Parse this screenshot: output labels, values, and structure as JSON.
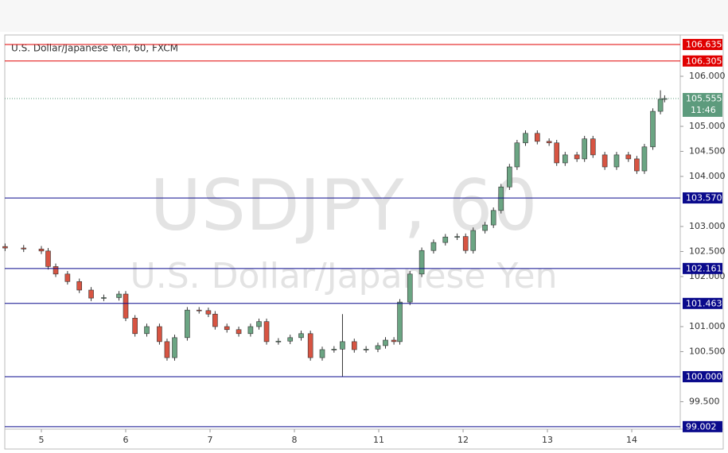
{
  "chart_data": {
    "type": "candlestick",
    "title": "U.S. Dollar/Japanese Yen, 60, FXCM",
    "watermark": "USDJPY, 60",
    "watermark_subtitle": "U.S. Dollar/Japanese Yen",
    "up_color": "#6ba583",
    "down_color": "#d75442",
    "x": [
      -0.43,
      -0.21,
      0.0,
      0.08,
      0.17,
      0.31,
      0.45,
      0.59,
      0.74,
      0.92,
      1.0,
      1.11,
      1.25,
      1.4,
      1.49,
      1.58,
      1.73,
      1.87,
      1.98,
      2.06,
      2.2,
      2.34,
      2.48,
      2.58,
      2.67,
      2.81,
      2.95,
      3.08,
      3.19,
      3.33,
      3.47,
      3.57,
      3.71,
      3.85,
      3.99,
      4.08,
      4.18,
      4.25,
      4.37,
      4.51,
      4.65,
      4.79,
      4.93,
      5.03,
      5.12,
      5.26,
      5.36,
      5.45,
      5.55,
      5.64,
      5.74,
      5.88,
      6.02,
      6.11,
      6.21,
      6.35,
      6.44,
      6.54,
      6.68,
      6.82,
      6.96,
      7.06,
      7.15,
      7.25,
      7.34,
      7.39
    ],
    "open": [
      102.6,
      102.57,
      102.55,
      102.51,
      102.2,
      102.05,
      101.9,
      101.73,
      101.57,
      101.58,
      101.65,
      101.17,
      100.86,
      101.0,
      100.7,
      100.38,
      100.78,
      101.33,
      101.32,
      101.25,
      101.0,
      100.94,
      100.86,
      101.0,
      101.1,
      100.7,
      100.71,
      100.78,
      100.86,
      100.38,
      100.54,
      100.55,
      100.7,
      100.54,
      100.55,
      100.62,
      100.73,
      100.7,
      101.49,
      102.05,
      102.52,
      102.68,
      102.79,
      102.8,
      102.52,
      102.92,
      103.03,
      103.32,
      103.79,
      104.19,
      104.67,
      104.86,
      104.7,
      104.67,
      104.27,
      104.43,
      104.35,
      104.75,
      104.43,
      104.19,
      104.43,
      104.35,
      104.11,
      104.59,
      105.3,
      105.54
    ],
    "high": [
      102.66,
      102.63,
      102.61,
      102.57,
      102.26,
      102.11,
      101.96,
      101.79,
      101.64,
      101.71,
      101.71,
      101.23,
      101.06,
      101.06,
      100.76,
      100.84,
      101.39,
      101.39,
      101.38,
      101.31,
      101.06,
      101.0,
      101.06,
      101.16,
      101.16,
      100.77,
      100.84,
      100.92,
      100.92,
      100.6,
      100.61,
      101.25,
      100.76,
      100.61,
      100.68,
      100.79,
      100.79,
      101.55,
      102.11,
      102.58,
      102.74,
      102.85,
      102.86,
      102.86,
      102.98,
      103.09,
      103.38,
      103.85,
      104.25,
      104.73,
      104.92,
      104.92,
      104.76,
      104.73,
      104.49,
      104.49,
      104.81,
      104.81,
      104.49,
      104.49,
      104.49,
      104.41,
      104.65,
      105.36,
      105.72,
      105.62
    ],
    "low": [
      102.51,
      102.49,
      102.45,
      102.14,
      101.99,
      101.84,
      101.67,
      101.51,
      101.51,
      101.52,
      101.11,
      100.8,
      100.8,
      100.64,
      100.32,
      100.32,
      100.72,
      101.26,
      101.19,
      100.94,
      100.88,
      100.8,
      100.8,
      100.94,
      100.64,
      100.64,
      100.65,
      100.72,
      100.32,
      100.32,
      100.48,
      100.0,
      100.48,
      100.48,
      100.49,
      100.56,
      100.64,
      100.64,
      101.43,
      101.99,
      102.46,
      102.62,
      102.73,
      102.46,
      102.46,
      102.86,
      102.97,
      103.26,
      103.73,
      104.13,
      104.61,
      104.64,
      104.61,
      104.21,
      104.21,
      104.29,
      104.29,
      104.37,
      104.13,
      104.13,
      104.29,
      104.05,
      104.05,
      104.53,
      105.24,
      105.48
    ],
    "close": [
      102.57,
      102.55,
      102.51,
      102.2,
      102.05,
      101.9,
      101.73,
      101.57,
      101.58,
      101.65,
      101.17,
      100.86,
      101.0,
      100.7,
      100.38,
      100.78,
      101.33,
      101.32,
      101.25,
      101.0,
      100.94,
      100.86,
      101.0,
      101.1,
      100.7,
      100.71,
      100.78,
      100.86,
      100.38,
      100.54,
      100.55,
      100.7,
      100.54,
      100.55,
      100.62,
      100.73,
      100.7,
      101.49,
      102.05,
      102.52,
      102.68,
      102.79,
      102.8,
      102.52,
      102.92,
      103.03,
      103.32,
      103.79,
      104.19,
      104.67,
      104.86,
      104.7,
      104.67,
      104.27,
      104.43,
      104.35,
      104.75,
      104.43,
      104.19,
      104.43,
      104.35,
      104.11,
      104.59,
      105.3,
      105.54,
      105.555
    ],
    "xlim": [
      -0.434,
      7.575
    ],
    "ylim": [
      98.952,
      106.825
    ],
    "xticks": [
      {
        "value": 0,
        "label": "5"
      },
      {
        "value": 1,
        "label": "6"
      },
      {
        "value": 2,
        "label": "7"
      },
      {
        "value": 3,
        "label": "8"
      },
      {
        "value": 4,
        "label": "11"
      },
      {
        "value": 5,
        "label": "12"
      },
      {
        "value": 6,
        "label": "13"
      },
      {
        "value": 7,
        "label": "14"
      }
    ],
    "yticks": [
      {
        "value": 99.5,
        "label": "99.500"
      },
      {
        "value": 100.5,
        "label": "100.500"
      },
      {
        "value": 101,
        "label": "101.000"
      },
      {
        "value": 102,
        "label": "102.000"
      },
      {
        "value": 102.5,
        "label": "102.500"
      },
      {
        "value": 103,
        "label": "103.000"
      },
      {
        "value": 104,
        "label": "104.000"
      },
      {
        "value": 104.5,
        "label": "104.500"
      },
      {
        "value": 105,
        "label": "105.000"
      },
      {
        "value": 106,
        "label": "106.000"
      }
    ],
    "levels": [
      {
        "value": 106.635,
        "label": "106.635",
        "color": "#e00000"
      },
      {
        "value": 106.305,
        "label": "106.305",
        "color": "#e00000"
      },
      {
        "value": 103.57,
        "label": "103.570",
        "color": "#0a0a8c"
      },
      {
        "value": 102.161,
        "label": "102.161",
        "color": "#0a0a8c"
      },
      {
        "value": 101.463,
        "label": "101.463",
        "color": "#0a0a8c"
      },
      {
        "value": 100,
        "label": "100.000",
        "color": "#0a0a8c"
      },
      {
        "value": 99.002,
        "label": "99.002",
        "color": "#0a0a8c"
      }
    ],
    "last_price": {
      "value": 105.555,
      "label": "105.555",
      "time": "11:46",
      "color": "#5d9b7d"
    },
    "grid": false
  }
}
